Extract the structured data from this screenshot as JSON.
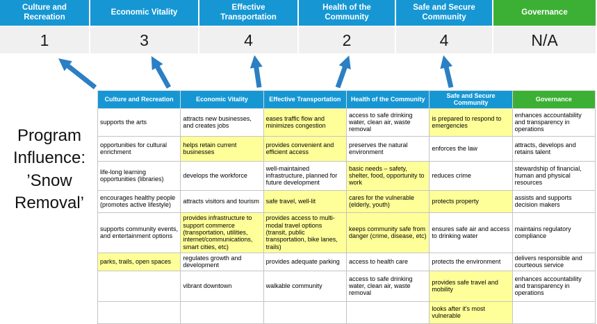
{
  "colors": {
    "header_blue": "#1697d4",
    "header_green": "#3cb034",
    "highlight_yellow": "#ffff99",
    "score_bg": "#f0f0f0",
    "arrow_blue": "#2b7fc4"
  },
  "title": {
    "lines": [
      "Program",
      "Influence:",
      "’Snow",
      "Removal’"
    ]
  },
  "summary": {
    "columns": [
      {
        "label": "Culture and Recreation",
        "score": "1"
      },
      {
        "label": "Economic Vitality",
        "score": "3"
      },
      {
        "label": "Effective Transportation",
        "score": "4"
      },
      {
        "label": "Health of the Community",
        "score": "2"
      },
      {
        "label": "Safe and Secure Community",
        "score": "4"
      },
      {
        "label": "Governance",
        "score": "N/A"
      }
    ]
  },
  "matrix": {
    "headers": [
      "Culture and Recreation",
      "Economic Vitality",
      "Effective Transportation",
      "Health of the Community",
      "Safe and Secure Community",
      "Governance"
    ],
    "rows": [
      [
        {
          "text": "supports the arts",
          "highlight": false
        },
        {
          "text": "attracts new businesses, and creates jobs",
          "highlight": false
        },
        {
          "text": "eases traffic flow and minimizes congestion",
          "highlight": true
        },
        {
          "text": "access to safe drinking water, clean air, waste removal",
          "highlight": false
        },
        {
          "text": "is prepared to respond to emergencies",
          "highlight": true
        },
        {
          "text": "enhances accountability and transparency in operations",
          "highlight": false
        }
      ],
      [
        {
          "text": "opportunities for cultural enrichment",
          "highlight": false
        },
        {
          "text": "helps retain current businesses",
          "highlight": true
        },
        {
          "text": "provides convenient and efficient access",
          "highlight": true
        },
        {
          "text": "preserves the natural environment",
          "highlight": false
        },
        {
          "text": "enforces the law",
          "highlight": false
        },
        {
          "text": "attracts, develops and retains talent",
          "highlight": false
        }
      ],
      [
        {
          "text": "life-long learning opportunities (libraries)",
          "highlight": false
        },
        {
          "text": "develops the workforce",
          "highlight": false
        },
        {
          "text": "well-maintained infrastructure, planned for future development",
          "highlight": false
        },
        {
          "text": "basic needs – safety, shelter, food, opportunity to work",
          "highlight": true
        },
        {
          "text": "reduces crime",
          "highlight": false
        },
        {
          "text": "stewardship of financial, human and physical resources",
          "highlight": false
        }
      ],
      [
        {
          "text": "encourages healthy people (promotes active lifestyle)",
          "highlight": false
        },
        {
          "text": "attracts visitors and tourism",
          "highlight": false
        },
        {
          "text": "safe travel, well-lit",
          "highlight": true
        },
        {
          "text": "cares for the vulnerable (elderly, youth)",
          "highlight": true
        },
        {
          "text": "protects property",
          "highlight": true
        },
        {
          "text": "assists and supports decision makers",
          "highlight": false
        }
      ],
      [
        {
          "text": "supports community events, and entertainment options",
          "highlight": false
        },
        {
          "text": "provides infrastructure to support commerce (transportation, utilities, internet/communications, smart cities, etc)",
          "highlight": true
        },
        {
          "text": "provides access to multi-modal travel options (transit, public transportation, bike lanes, trails)",
          "highlight": true
        },
        {
          "text": "keeps community safe from danger (crime, disease, etc)",
          "highlight": true
        },
        {
          "text": "ensures safe air and access to drinking water",
          "highlight": false
        },
        {
          "text": "maintains regulatory compliance",
          "highlight": false
        }
      ],
      [
        {
          "text": "parks, trails, open spaces",
          "highlight": true
        },
        {
          "text": "regulates growth and development",
          "highlight": false
        },
        {
          "text": "provides adequate parking",
          "highlight": false
        },
        {
          "text": "access to health care",
          "highlight": false
        },
        {
          "text": "protects the environment",
          "highlight": false
        },
        {
          "text": "delivers responsible and courteous service",
          "highlight": false
        }
      ],
      [
        {
          "text": "",
          "highlight": false
        },
        {
          "text": "vibrant downtown",
          "highlight": false
        },
        {
          "text": "walkable community",
          "highlight": false
        },
        {
          "text": "access to safe drinking water, clean air, waste removal",
          "highlight": false
        },
        {
          "text": "provides safe travel and mobility",
          "highlight": true
        },
        {
          "text": "enhances accountability and transparency in operations",
          "highlight": false
        }
      ],
      [
        {
          "text": "",
          "highlight": false
        },
        {
          "text": "",
          "highlight": false
        },
        {
          "text": "",
          "highlight": false
        },
        {
          "text": "",
          "highlight": false
        },
        {
          "text": "looks after it's most vulnerable",
          "highlight": true
        },
        {
          "text": "",
          "highlight": false
        }
      ]
    ]
  }
}
